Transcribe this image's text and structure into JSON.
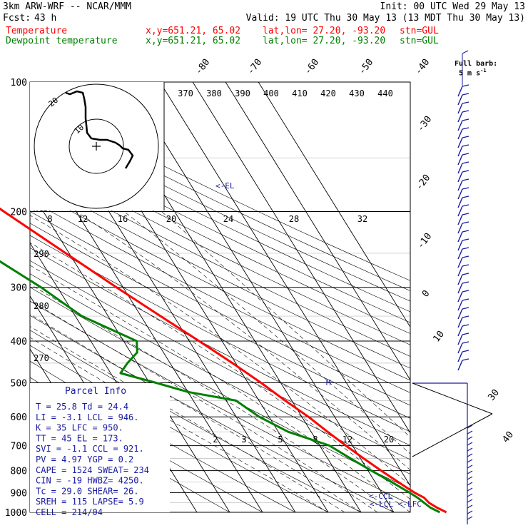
{
  "header": {
    "line1_left": "3km ARW-WRF -- NCAR/MMM",
    "line1_right": "Init: 00 UTC Wed 29 May 13",
    "fcst_label": "Fcst:",
    "fcst_value": "43 h",
    "valid": "Valid: 19 UTC Thu 30 May 13 (13 MDT Thu 30 May 13)",
    "temp_label": "Temperature",
    "dew_label": "Dewpoint temperature",
    "xy": "x,y=651.21, 65.02",
    "latlon": "lat,lon= 27.20, -93.20",
    "stn": "stn=GUL"
  },
  "colors": {
    "temperature": "#ff0000",
    "dewpoint": "#008000",
    "parcel_text": "#1a1aa0",
    "barbs": "#1a1aa0"
  },
  "full_barb": {
    "title": "Full barb:",
    "value": "5 m s",
    "exp": "-1"
  },
  "pressure_labels": [
    "100",
    "200",
    "300",
    "400",
    "500",
    "600",
    "700",
    "800",
    "900",
    "1000"
  ],
  "skewed_temp_labels": [
    "-80",
    "-70",
    "-60",
    "-50",
    "-40",
    "-30",
    "-20",
    "-10",
    "0",
    "10",
    "30",
    "40"
  ],
  "theta_labels": [
    "370",
    "380",
    "390",
    "400",
    "410",
    "420",
    "430",
    "440"
  ],
  "hodo_speed_labels": [
    "8",
    "12",
    "16",
    "20",
    "24",
    "28",
    "32"
  ],
  "hodo_kts": "kts",
  "hodo_ring_labels": [
    "20",
    "10"
  ],
  "mixing_ratio_labels": [
    "2",
    "3",
    "5",
    "8",
    "12",
    "20"
  ],
  "thetae_labels": [
    "290",
    "280",
    "270"
  ],
  "level_marks": {
    "el": "<-EL",
    "ccl": "<-CCL",
    "lcl_lfc": "<-LCL <-LFC",
    "m": "M"
  },
  "parcel": {
    "title": "Parcel Info",
    "rows": [
      "T  =    25.8  Td =  24.4",
      "LI =    -3.1  LCL =  946.",
      "K  =     35  LFC = 950.",
      "TT =     45  EL  =  173.",
      "SVI =   -1.1  CCL =  921.",
      "PV =   4.97  YGP =   0.2",
      "CAPE =  1524  SWEAT=  234",
      "CIN =    -19  HWBZ= 4250.",
      "Tc =   29.0  SHEAR=  26.",
      "SREH =   115  LAPSE=  5.9",
      "CELL = 214/04"
    ]
  },
  "chart_data": {
    "type": "line",
    "title": "",
    "xlabel": "",
    "ylabel": "",
    "y_scale": "log-pressure",
    "ylim": [
      1000,
      100
    ],
    "series": [
      {
        "name": "Temperature",
        "points": [
          [
            1000,
            26
          ],
          [
            975,
            24
          ],
          [
            950,
            22.5
          ],
          [
            925,
            22
          ],
          [
            900,
            20
          ],
          [
            875,
            18.5
          ],
          [
            850,
            17
          ],
          [
            800,
            14
          ],
          [
            750,
            11
          ],
          [
            700,
            8
          ],
          [
            650,
            5
          ],
          [
            600,
            2
          ],
          [
            550,
            -2
          ],
          [
            500,
            -6
          ],
          [
            450,
            -11
          ],
          [
            400,
            -17
          ],
          [
            350,
            -24
          ],
          [
            300,
            -32
          ],
          [
            250,
            -41
          ],
          [
            200,
            -52
          ],
          [
            175,
            -58
          ],
          [
            150,
            -62
          ],
          [
            125,
            -65
          ],
          [
            100,
            -70
          ]
        ]
      },
      {
        "name": "Dewpoint temperature",
        "points": [
          [
            1000,
            24
          ],
          [
            975,
            22
          ],
          [
            950,
            21
          ],
          [
            925,
            20
          ],
          [
            900,
            18.5
          ],
          [
            850,
            15
          ],
          [
            800,
            11
          ],
          [
            750,
            7
          ],
          [
            700,
            3
          ],
          [
            650,
            -7
          ],
          [
            600,
            -13
          ],
          [
            550,
            -17
          ],
          [
            525,
            -30
          ],
          [
            500,
            -38
          ],
          [
            475,
            -47
          ],
          [
            450,
            -43
          ],
          [
            425,
            -38
          ],
          [
            400,
            -36
          ],
          [
            350,
            -48
          ],
          [
            300,
            -55
          ],
          [
            250,
            -65
          ],
          [
            200,
            -75
          ],
          [
            175,
            -80
          ],
          [
            150,
            -84
          ],
          [
            125,
            -87
          ],
          [
            100,
            -93
          ]
        ]
      }
    ]
  }
}
